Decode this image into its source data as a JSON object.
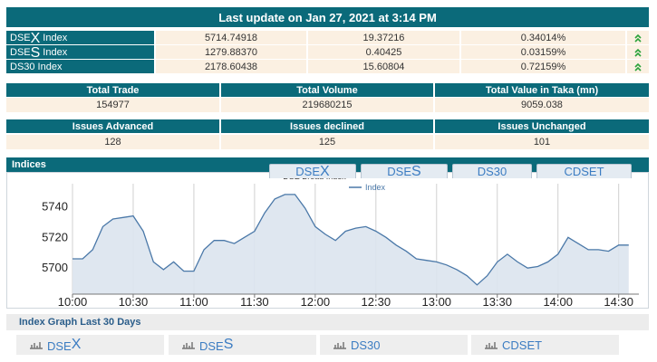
{
  "header": {
    "title": "Last update on Jan 27, 2021 at 3:14 PM"
  },
  "index_table": {
    "rows": [
      {
        "name": {
          "base": "DSE",
          "letter": "X",
          "suffix": "Index"
        },
        "values": [
          "5714.74918",
          "19.37216",
          "0.34014%"
        ]
      },
      {
        "name": {
          "base": "DSE",
          "letter": "S",
          "suffix": "Index"
        },
        "values": [
          "1279.88370",
          "0.40425",
          "0.03159%"
        ]
      },
      {
        "name": {
          "base": "DS30",
          "suffix": "Index"
        },
        "values": [
          "2178.60438",
          "15.60804",
          "0.72159%"
        ]
      }
    ]
  },
  "trade_table": {
    "headers": [
      "Total Trade",
      "Total Volume",
      "Total Value in Taka (mn)"
    ],
    "values": [
      "154977",
      "219680215",
      "9059.038"
    ]
  },
  "issues_table": {
    "headers": [
      "Issues Advanced",
      "Issues declined",
      "Issues Unchanged"
    ],
    "values": [
      "128",
      "125",
      "101"
    ]
  },
  "indices": {
    "title": "Indices",
    "tabs": [
      {
        "base": "DSE",
        "letter": "X"
      },
      {
        "base": "DSE",
        "letter": "S"
      },
      {
        "base": "DS30"
      },
      {
        "base": "CDSET"
      }
    ]
  },
  "chart_data": {
    "type": "area",
    "title": "DSE Broad Index",
    "x": [
      "10:00",
      "10:05",
      "10:10",
      "10:15",
      "10:20",
      "10:25",
      "10:30",
      "10:35",
      "10:40",
      "10:45",
      "10:50",
      "10:55",
      "11:00",
      "11:05",
      "11:10",
      "11:15",
      "11:20",
      "11:25",
      "11:30",
      "11:35",
      "11:40",
      "11:45",
      "11:50",
      "11:55",
      "12:00",
      "12:05",
      "12:10",
      "12:15",
      "12:20",
      "12:25",
      "12:30",
      "12:35",
      "12:40",
      "12:45",
      "12:50",
      "12:55",
      "13:00",
      "13:05",
      "13:10",
      "13:15",
      "13:20",
      "13:25",
      "13:30",
      "13:35",
      "13:40",
      "13:45",
      "13:50",
      "13:55",
      "14:00",
      "14:05",
      "14:10",
      "14:15",
      "14:20",
      "14:25",
      "14:30",
      "14:35"
    ],
    "series": [
      {
        "name": "Index",
        "color": "#4a78a8",
        "values": [
          5706,
          5706,
          5712,
          5727,
          5732,
          5733,
          5734,
          5724,
          5704,
          5699,
          5704,
          5698,
          5698,
          5712,
          5718,
          5718,
          5716,
          5720,
          5724,
          5736,
          5745,
          5748,
          5748,
          5739,
          5727,
          5722,
          5718,
          5724,
          5726,
          5727,
          5724,
          5720,
          5715,
          5711,
          5706,
          5705,
          5704,
          5702,
          5699,
          5695,
          5689,
          5695,
          5704,
          5709,
          5704,
          5700,
          5701,
          5704,
          5709,
          5720,
          5716,
          5712,
          5712,
          5711,
          5715,
          5715
        ]
      }
    ],
    "xlim": [
      "10:00",
      "14:40"
    ],
    "xticks": [
      "10:00",
      "10:30",
      "11:00",
      "11:30",
      "12:00",
      "12:30",
      "13:00",
      "13:30",
      "14:00",
      "14:30"
    ],
    "ylim": [
      5683,
      5755
    ],
    "yticks": [
      5700,
      5720,
      5740
    ],
    "grid": "vertical",
    "fill_color": "#dce4ee"
  },
  "history": {
    "title": "Index Graph Last 30 Days",
    "buttons": [
      {
        "base": "DSE",
        "letter": "X"
      },
      {
        "base": "DSE",
        "letter": "S"
      },
      {
        "base": "DS30"
      },
      {
        "base": "CDSET"
      }
    ]
  }
}
